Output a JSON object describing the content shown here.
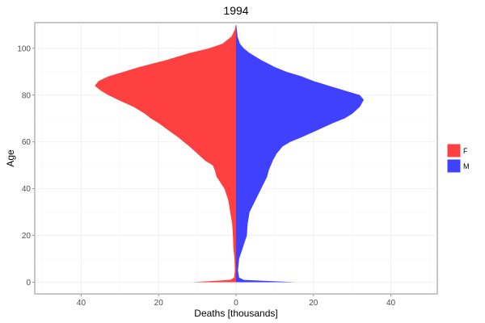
{
  "chart_data": {
    "type": "area",
    "title": "1994",
    "xlabel": "Deaths [thousands]",
    "ylabel": "Age",
    "xlim": [
      -52,
      52
    ],
    "ylim": [
      -5,
      111
    ],
    "x_ticks": [
      -40,
      -20,
      0,
      20,
      40
    ],
    "x_tick_labels": [
      "40",
      "20",
      "0",
      "20",
      "40"
    ],
    "y_ticks": [
      0,
      20,
      40,
      60,
      80,
      100
    ],
    "y_tick_labels": [
      "0",
      "20",
      "40",
      "60",
      "80",
      "100"
    ],
    "grid": true,
    "legend_position": "right",
    "colors": {
      "F": "#ff4040",
      "M": "#4040ff"
    },
    "series": [
      {
        "name": "F",
        "side": "left",
        "ages": [
          0,
          1,
          2,
          5,
          10,
          15,
          20,
          25,
          30,
          35,
          40,
          45,
          48,
          50,
          52,
          55,
          58,
          60,
          62,
          65,
          68,
          70,
          72,
          75,
          78,
          80,
          82,
          84,
          85,
          86,
          88,
          90,
          92,
          95,
          98,
          100,
          102,
          105,
          108,
          110
        ],
        "values": [
          11.5,
          1.5,
          0.5,
          0.3,
          0.4,
          0.7,
          0.8,
          1.0,
          1.5,
          2.0,
          3.0,
          5.0,
          5.5,
          6.0,
          8.0,
          10.0,
          12.0,
          13.5,
          15.0,
          17.5,
          20.0,
          22.0,
          23.5,
          26.5,
          30.5,
          33.0,
          35.0,
          36.5,
          36.0,
          35.5,
          33.0,
          29.0,
          25.0,
          18.0,
          12.0,
          7.0,
          3.5,
          1.2,
          0.3,
          0.1
        ]
      },
      {
        "name": "M",
        "side": "right",
        "ages": [
          0,
          1,
          2,
          5,
          10,
          15,
          20,
          25,
          30,
          35,
          40,
          45,
          48,
          50,
          52,
          55,
          58,
          60,
          62,
          65,
          68,
          70,
          72,
          75,
          78,
          80,
          82,
          84,
          85,
          86,
          88,
          90,
          92,
          95,
          98,
          100,
          102,
          105,
          108,
          110
        ],
        "values": [
          15.5,
          2.0,
          0.8,
          0.5,
          0.8,
          1.8,
          2.8,
          3.0,
          3.5,
          5.0,
          6.5,
          8.0,
          8.5,
          9.0,
          9.5,
          10.5,
          12.0,
          14.0,
          17.0,
          21.0,
          25.0,
          28.0,
          30.0,
          32.0,
          33.0,
          32.0,
          28.0,
          24.0,
          22.0,
          20.0,
          17.0,
          13.0,
          10.0,
          6.5,
          3.5,
          2.0,
          1.0,
          0.4,
          0.2,
          0.05
        ]
      }
    ]
  }
}
